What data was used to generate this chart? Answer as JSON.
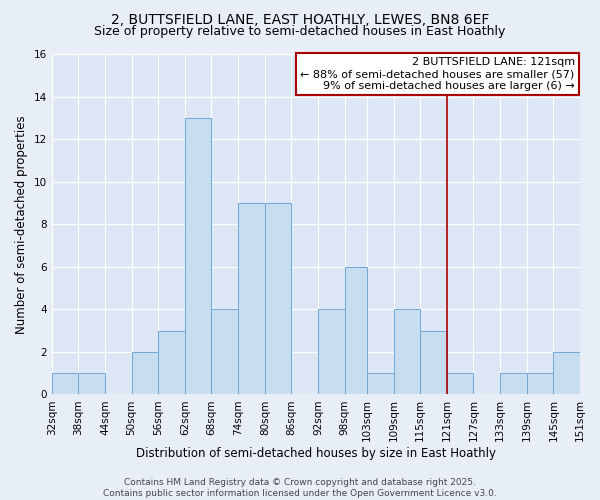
{
  "title": "2, BUTTSFIELD LANE, EAST HOATHLY, LEWES, BN8 6EF",
  "subtitle": "Size of property relative to semi-detached houses in East Hoathly",
  "xlabel": "Distribution of semi-detached houses by size in East Hoathly",
  "ylabel": "Number of semi-detached properties",
  "bins": [
    32,
    38,
    44,
    50,
    56,
    62,
    68,
    74,
    80,
    86,
    92,
    98,
    103,
    109,
    115,
    121,
    127,
    133,
    139,
    145,
    151
  ],
  "counts": [
    1,
    1,
    0,
    2,
    3,
    13,
    4,
    9,
    9,
    0,
    4,
    6,
    1,
    4,
    3,
    1,
    0,
    1,
    1,
    2
  ],
  "bar_color": "#c9ddf0",
  "bar_edge_color": "#6fa8d6",
  "vline_x": 121,
  "vline_color": "#aa0000",
  "annotation_line1": "2 BUTTSFIELD LANE: 121sqm",
  "annotation_line2": "← 88% of semi-detached houses are smaller (57)",
  "annotation_line3": "9% of semi-detached houses are larger (6) →",
  "ylim": [
    0,
    16
  ],
  "yticks": [
    0,
    2,
    4,
    6,
    8,
    10,
    12,
    14,
    16
  ],
  "tick_labels": [
    "32sqm",
    "38sqm",
    "44sqm",
    "50sqm",
    "56sqm",
    "62sqm",
    "68sqm",
    "74sqm",
    "80sqm",
    "86sqm",
    "92sqm",
    "98sqm",
    "103sqm",
    "109sqm",
    "115sqm",
    "121sqm",
    "127sqm",
    "133sqm",
    "139sqm",
    "145sqm",
    "151sqm"
  ],
  "background_color": "#e8eef8",
  "plot_bg_color": "#dce6f5",
  "grid_color": "#ffffff",
  "footer_text": "Contains HM Land Registry data © Crown copyright and database right 2025.\nContains public sector information licensed under the Open Government Licence v3.0.",
  "title_fontsize": 10,
  "subtitle_fontsize": 9,
  "axis_label_fontsize": 8.5,
  "tick_fontsize": 7.5,
  "annotation_fontsize": 8,
  "footer_fontsize": 6.5
}
